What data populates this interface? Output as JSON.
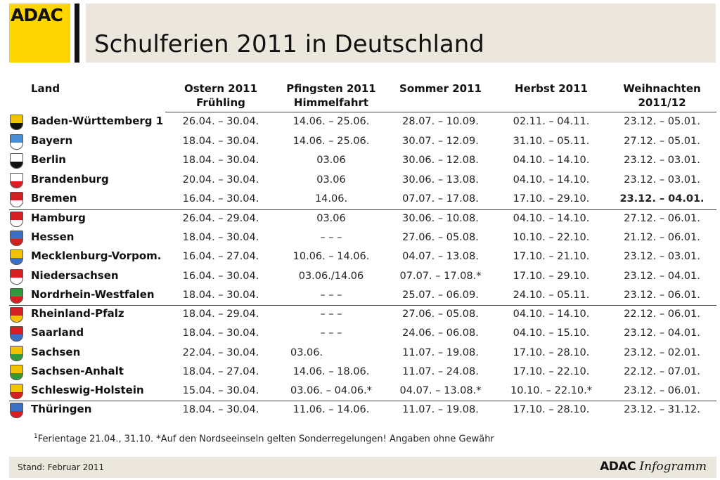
{
  "header": {
    "logo_text": "ADAC",
    "title": "Schulferien 2011 in Deutschland"
  },
  "columns": {
    "land": "Land",
    "ostern": [
      "Ostern 2011",
      "Frühling"
    ],
    "pfingsten": [
      "Pfingsten 2011",
      "Himmelfahrt"
    ],
    "sommer": "Sommer 2011",
    "herbst": "Herbst 2011",
    "weihnachten": [
      "Weihnachten",
      "2011/12"
    ]
  },
  "rows": [
    {
      "land": "Baden-Württemberg 1",
      "crest": "baden-wuerttemberg-crest-icon",
      "colors": [
        "#f2c300",
        "#111111"
      ],
      "ostern": "26.04. – 30.04.",
      "pfingsten": "14.06. – 25.06.",
      "sommer": "28.07. – 10.09.",
      "herbst": "02.11. – 04.11.",
      "weihnachten": "23.12. – 05.01."
    },
    {
      "land": "Bayern",
      "crest": "bayern-crest-icon",
      "colors": [
        "#4a8fd4",
        "#ffffff"
      ],
      "ostern": "18.04. – 30.04.",
      "pfingsten": "14.06. – 25.06.",
      "sommer": "30.07. – 12.09.",
      "herbst": "31.10. – 05.11.",
      "weihnachten": "27.12. – 05.01."
    },
    {
      "land": "Berlin",
      "crest": "berlin-crest-icon",
      "colors": [
        "#ffffff",
        "#111111"
      ],
      "ostern": "18.04. – 30.04.",
      "pfingsten": "03.06",
      "sommer": "30.06. – 12.08.",
      "herbst": "04.10. – 14.10.",
      "weihnachten": "23.12. – 03.01."
    },
    {
      "land": "Brandenburg",
      "crest": "brandenburg-crest-icon",
      "colors": [
        "#ffffff",
        "#d42020"
      ],
      "ostern": "20.04. – 30.04.",
      "pfingsten": "03.06",
      "sommer": "30.06. – 13.08.",
      "herbst": "04.10. – 14.10.",
      "weihnachten": "23.12. – 03.01."
    },
    {
      "land": "Bremen",
      "crest": "bremen-crest-icon",
      "colors": [
        "#d42020",
        "#ffffff"
      ],
      "ostern": "16.04. – 30.04.",
      "pfingsten": "14.06.",
      "sommer": "07.07. – 17.08.",
      "herbst": "17.10. – 29.10.",
      "weihnachten": "23.12. – 04.01."
    },
    {
      "land": "Hamburg",
      "crest": "hamburg-crest-icon",
      "colors": [
        "#d42020",
        "#ffffff"
      ],
      "ostern": "26.04. – 29.04.",
      "pfingsten": "03.06",
      "sommer": "30.06. – 10.08.",
      "herbst": "04.10. – 14.10.",
      "weihnachten": "27.12. – 06.01."
    },
    {
      "land": "Hessen",
      "crest": "hessen-crest-icon",
      "colors": [
        "#3a6fc4",
        "#d42020"
      ],
      "ostern": "18.04. – 30.04.",
      "pfingsten": "– – –",
      "sommer": "27.06. – 05.08.",
      "herbst": "10.10. – 22.10.",
      "weihnachten": "21.12. – 06.01."
    },
    {
      "land": "Mecklenburg-Vorpom.",
      "crest": "mecklenburg-vorpommern-crest-icon",
      "colors": [
        "#f2c300",
        "#3a6fc4"
      ],
      "ostern": "16.04. – 27.04.",
      "pfingsten": "10.06. – 14.06.",
      "sommer": "04.07. – 13.08.",
      "herbst": "17.10. – 21.10.",
      "weihnachten": "23.12. – 03.01."
    },
    {
      "land": "Niedersachsen",
      "crest": "niedersachsen-crest-icon",
      "colors": [
        "#d42020",
        "#ffffff"
      ],
      "ostern": "16.04. – 30.04.",
      "pfingsten": "03.06./14.06",
      "sommer": "07.07. – 17.08.*",
      "herbst": "17.10. – 29.10.",
      "weihnachten": "23.12. – 04.01."
    },
    {
      "land": "Nordrhein-Westfalen",
      "crest": "nordrhein-westfalen-crest-icon",
      "colors": [
        "#2e9a3e",
        "#d42020"
      ],
      "ostern": "18.04. – 30.04.",
      "pfingsten": "– – –",
      "sommer": "25.07. – 06.09.",
      "herbst": "24.10. – 05.11.",
      "weihnachten": "23.12. – 06.01."
    },
    {
      "land": "Rheinland-Pfalz",
      "crest": "rheinland-pfalz-crest-icon",
      "colors": [
        "#d42020",
        "#f2c300"
      ],
      "ostern": "18.04. – 29.04.",
      "pfingsten": "– – –",
      "sommer": "27.06. – 05.08.",
      "herbst": "04.10. – 14.10.",
      "weihnachten": "22.12. – 06.01."
    },
    {
      "land": "Saarland",
      "crest": "saarland-crest-icon",
      "colors": [
        "#d42020",
        "#3a6fc4"
      ],
      "ostern": "18.04. – 30.04.",
      "pfingsten": "– – –",
      "sommer": "24.06. – 06.08.",
      "herbst": "04.10. – 15.10.",
      "weihnachten": "23.12. – 04.01."
    },
    {
      "land": "Sachsen",
      "crest": "sachsen-crest-icon",
      "colors": [
        "#f2c300",
        "#2e9a3e"
      ],
      "ostern": "22.04. – 30.04.",
      "pfingsten": "03.06.",
      "sommer": "11.07. – 19.08.",
      "herbst": "17.10. – 28.10.",
      "weihnachten": "23.12. – 02.01."
    },
    {
      "land": "Sachsen-Anhalt",
      "crest": "sachsen-anhalt-crest-icon",
      "colors": [
        "#f2c300",
        "#2e9a3e"
      ],
      "ostern": "18.04. – 27.04.",
      "pfingsten": "14.06. – 18.06.",
      "sommer": "11.07. – 24.08.",
      "herbst": "17.10. – 22.10.",
      "weihnachten": "22.12. – 07.01."
    },
    {
      "land": "Schleswig-Holstein",
      "crest": "schleswig-holstein-crest-icon",
      "colors": [
        "#f2c300",
        "#d42020"
      ],
      "ostern": "15.04. – 30.04.",
      "pfingsten": "03.06. – 04.06.*",
      "sommer": "04.07. – 13.08.*",
      "herbst": "10.10. – 22.10.*",
      "weihnachten": "23.12. – 06.01."
    },
    {
      "land": "Thüringen",
      "crest": "thueringen-crest-icon",
      "colors": [
        "#3a6fc4",
        "#d42020"
      ],
      "ostern": "18.04. – 30.04.",
      "pfingsten": "11.06. – 14.06.",
      "sommer": "11.07. – 19.08.",
      "herbst": "17.10. – 28.10.",
      "weihnachten": "23.12. – 31.12."
    }
  ],
  "footnote": {
    "mark": "1",
    "text": "Ferientage 21.04., 31.10.   *Auf den Nordseeinseln gelten Sonderregelungen!   Angaben ohne Gewähr"
  },
  "footer": {
    "stand": "Stand: Februar 2011",
    "brand_bold": "ADAC",
    "brand_italic": "Infogramm"
  }
}
